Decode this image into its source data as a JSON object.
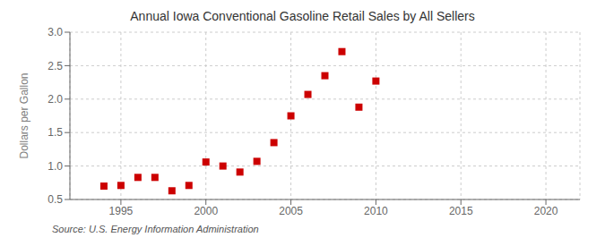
{
  "chart_data": {
    "type": "scatter",
    "title": "Annual Iowa Conventional Gasoline Retail Sales by All Sellers",
    "ylabel": "Dollars per Gallon",
    "annotations": [
      "Source: U.S. Energy Information Administration"
    ],
    "x": [
      1994,
      1995,
      1996,
      1997,
      1998,
      1999,
      2000,
      2001,
      2002,
      2003,
      2004,
      2005,
      2006,
      2007,
      2008,
      2009,
      2010
    ],
    "values": [
      0.7,
      0.71,
      0.83,
      0.83,
      0.63,
      0.71,
      1.06,
      1.0,
      0.91,
      1.07,
      1.35,
      1.75,
      2.07,
      2.35,
      2.71,
      1.88,
      2.27
    ],
    "xlim": [
      1992,
      2022
    ],
    "ylim": [
      0.5,
      3.0
    ],
    "xticks": [
      1995,
      2000,
      2005,
      2010,
      2015,
      2020
    ],
    "yticks": [
      0.5,
      {
        "value": 1.0,
        "label": "1.0"
      },
      1.5,
      {
        "value": 2.0,
        "label": "2.0"
      },
      2.5,
      {
        "value": 3.0,
        "label": "3.0"
      }
    ],
    "color": "#cc0000",
    "marker": "square",
    "grid": true
  }
}
